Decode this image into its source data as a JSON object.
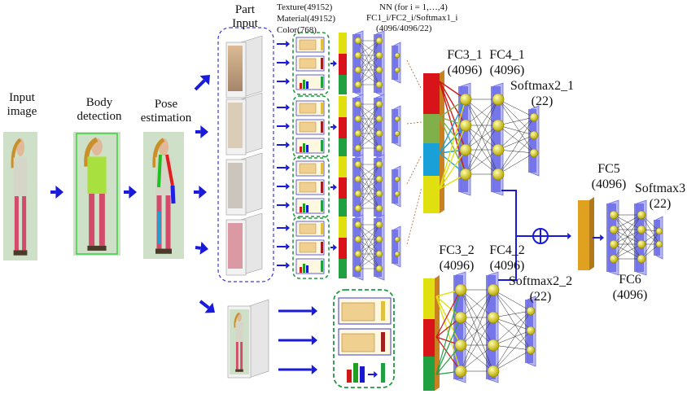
{
  "labels": {
    "input_image": "Input\nimage",
    "body_detection": "Body\ndetection",
    "pose_estimation": "Pose\nestimation",
    "part_input": "Part\nInput",
    "features_texture": "Texture(49152)",
    "features_material": "Material(49152)",
    "features_color": "Color(768)",
    "nn_title": "NN (for i = 1,…,4)",
    "nn_layers": "FC1_i/FC2_i/Softmax1_i",
    "nn_sizes": "(4096/4096/22)",
    "fc3_1": "FC3_1\n(4096)",
    "fc4_1": "FC4_1\n(4096)",
    "softmax2_1": "Softmax2_1\n(22)",
    "fc5": "FC5\n(4096)",
    "softmax3": "Softmax3\n(22)",
    "fc6": "FC6\n(4096)",
    "fc3_2": "FC3_2\n(4096)",
    "fc4_2": "FC4_2\n(4096)",
    "softmax2_2": "Softmax2_2\n(22)"
  },
  "colors": {
    "arrow": "#1a1adc",
    "node": "#e8e01a",
    "layer": "#6a6ae6",
    "dashed_blue": "#3a3ad0",
    "dashed_green": "#1f9a3f",
    "concat_red": "#d8141a",
    "concat_green": "#7fb04a",
    "concat_blue": "#1aa0d8",
    "concat_yellow": "#e0e010",
    "fc5_bar": "#e0a020"
  }
}
